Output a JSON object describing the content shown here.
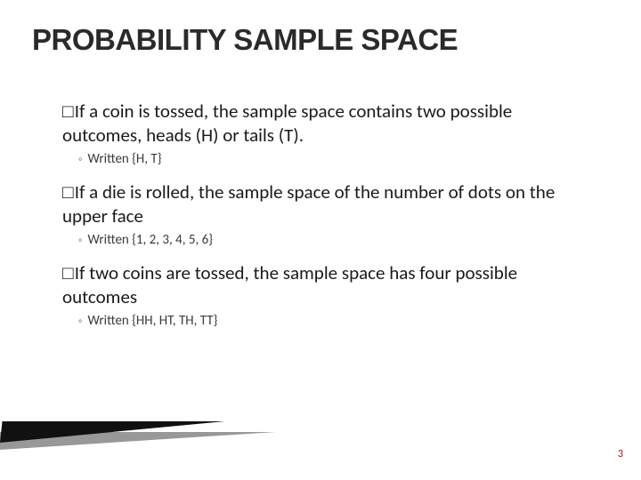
{
  "title": {
    "text": "PROBABILITY SAMPLE SPACE",
    "fontsize": 33,
    "color": "#2a2a2a"
  },
  "bullets": [
    {
      "main": "If a coin is tossed, the sample space contains two possible outcomes, heads (H) or tails (T).",
      "sub": "Written {H, T}"
    },
    {
      "main": "If a die is rolled, the sample space of the number of dots on the upper face",
      "sub": "Written {1, 2, 3, 4, 5, 6}"
    },
    {
      "main": "If two coins are tossed, the sample space has four possible outcomes",
      "sub": "Written {HH, HT, TH, TT}"
    }
  ],
  "style": {
    "bullet_fontsize": 21,
    "sub_fontsize": 15,
    "bullet_color": "#1a1a1a",
    "sub_color": "#3a3a3a",
    "bullet_marker": "□",
    "sub_marker": "◦",
    "background_color": "#ffffff"
  },
  "page_number": {
    "value": "3",
    "fontsize": 12,
    "color": "#9b0f12"
  },
  "decoration": {
    "wedge_dark_color": "#111111",
    "wedge_gray_color": "#8d8d8d"
  }
}
